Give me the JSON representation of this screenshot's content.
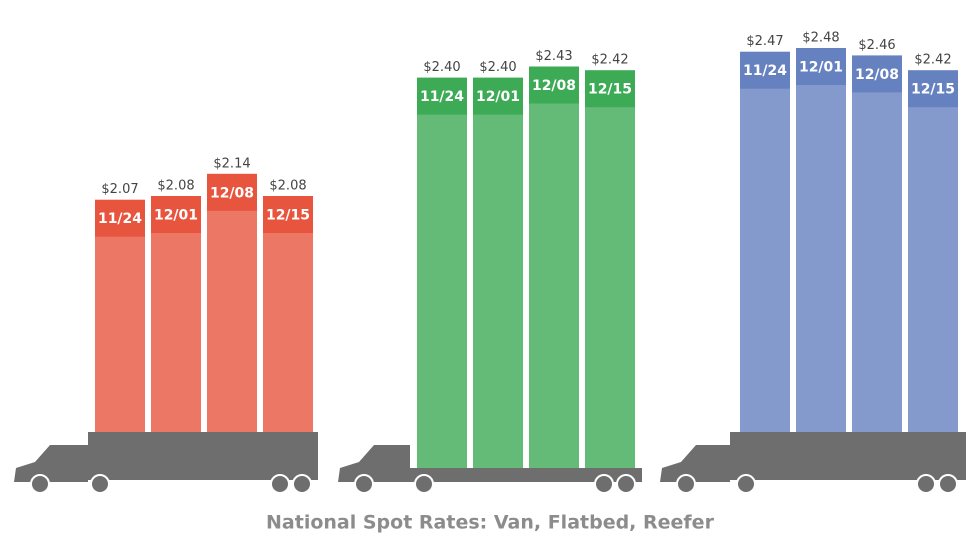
{
  "chart_data": {
    "type": "bar",
    "title": "National Spot Rates: Van, Flatbed, Reefer",
    "categories": [
      "11/24",
      "12/01",
      "12/08",
      "12/15"
    ],
    "series": [
      {
        "color": "#e8553e",
        "values": [
          2.07,
          2.08,
          2.14,
          2.08
        ],
        "value_labels": [
          "$2.07",
          "$2.08",
          "$2.14",
          "$2.08"
        ]
      },
      {
        "color": "#3daa55",
        "values": [
          2.4,
          2.4,
          2.43,
          2.42
        ],
        "value_labels": [
          "$2.40",
          "$2.40",
          "$2.43",
          "$2.42"
        ]
      },
      {
        "color": "#6681c0",
        "values": [
          2.47,
          2.48,
          2.46,
          2.42
        ],
        "value_labels": [
          "$2.47",
          "$2.48",
          "$2.46",
          "$2.42"
        ]
      }
    ]
  }
}
